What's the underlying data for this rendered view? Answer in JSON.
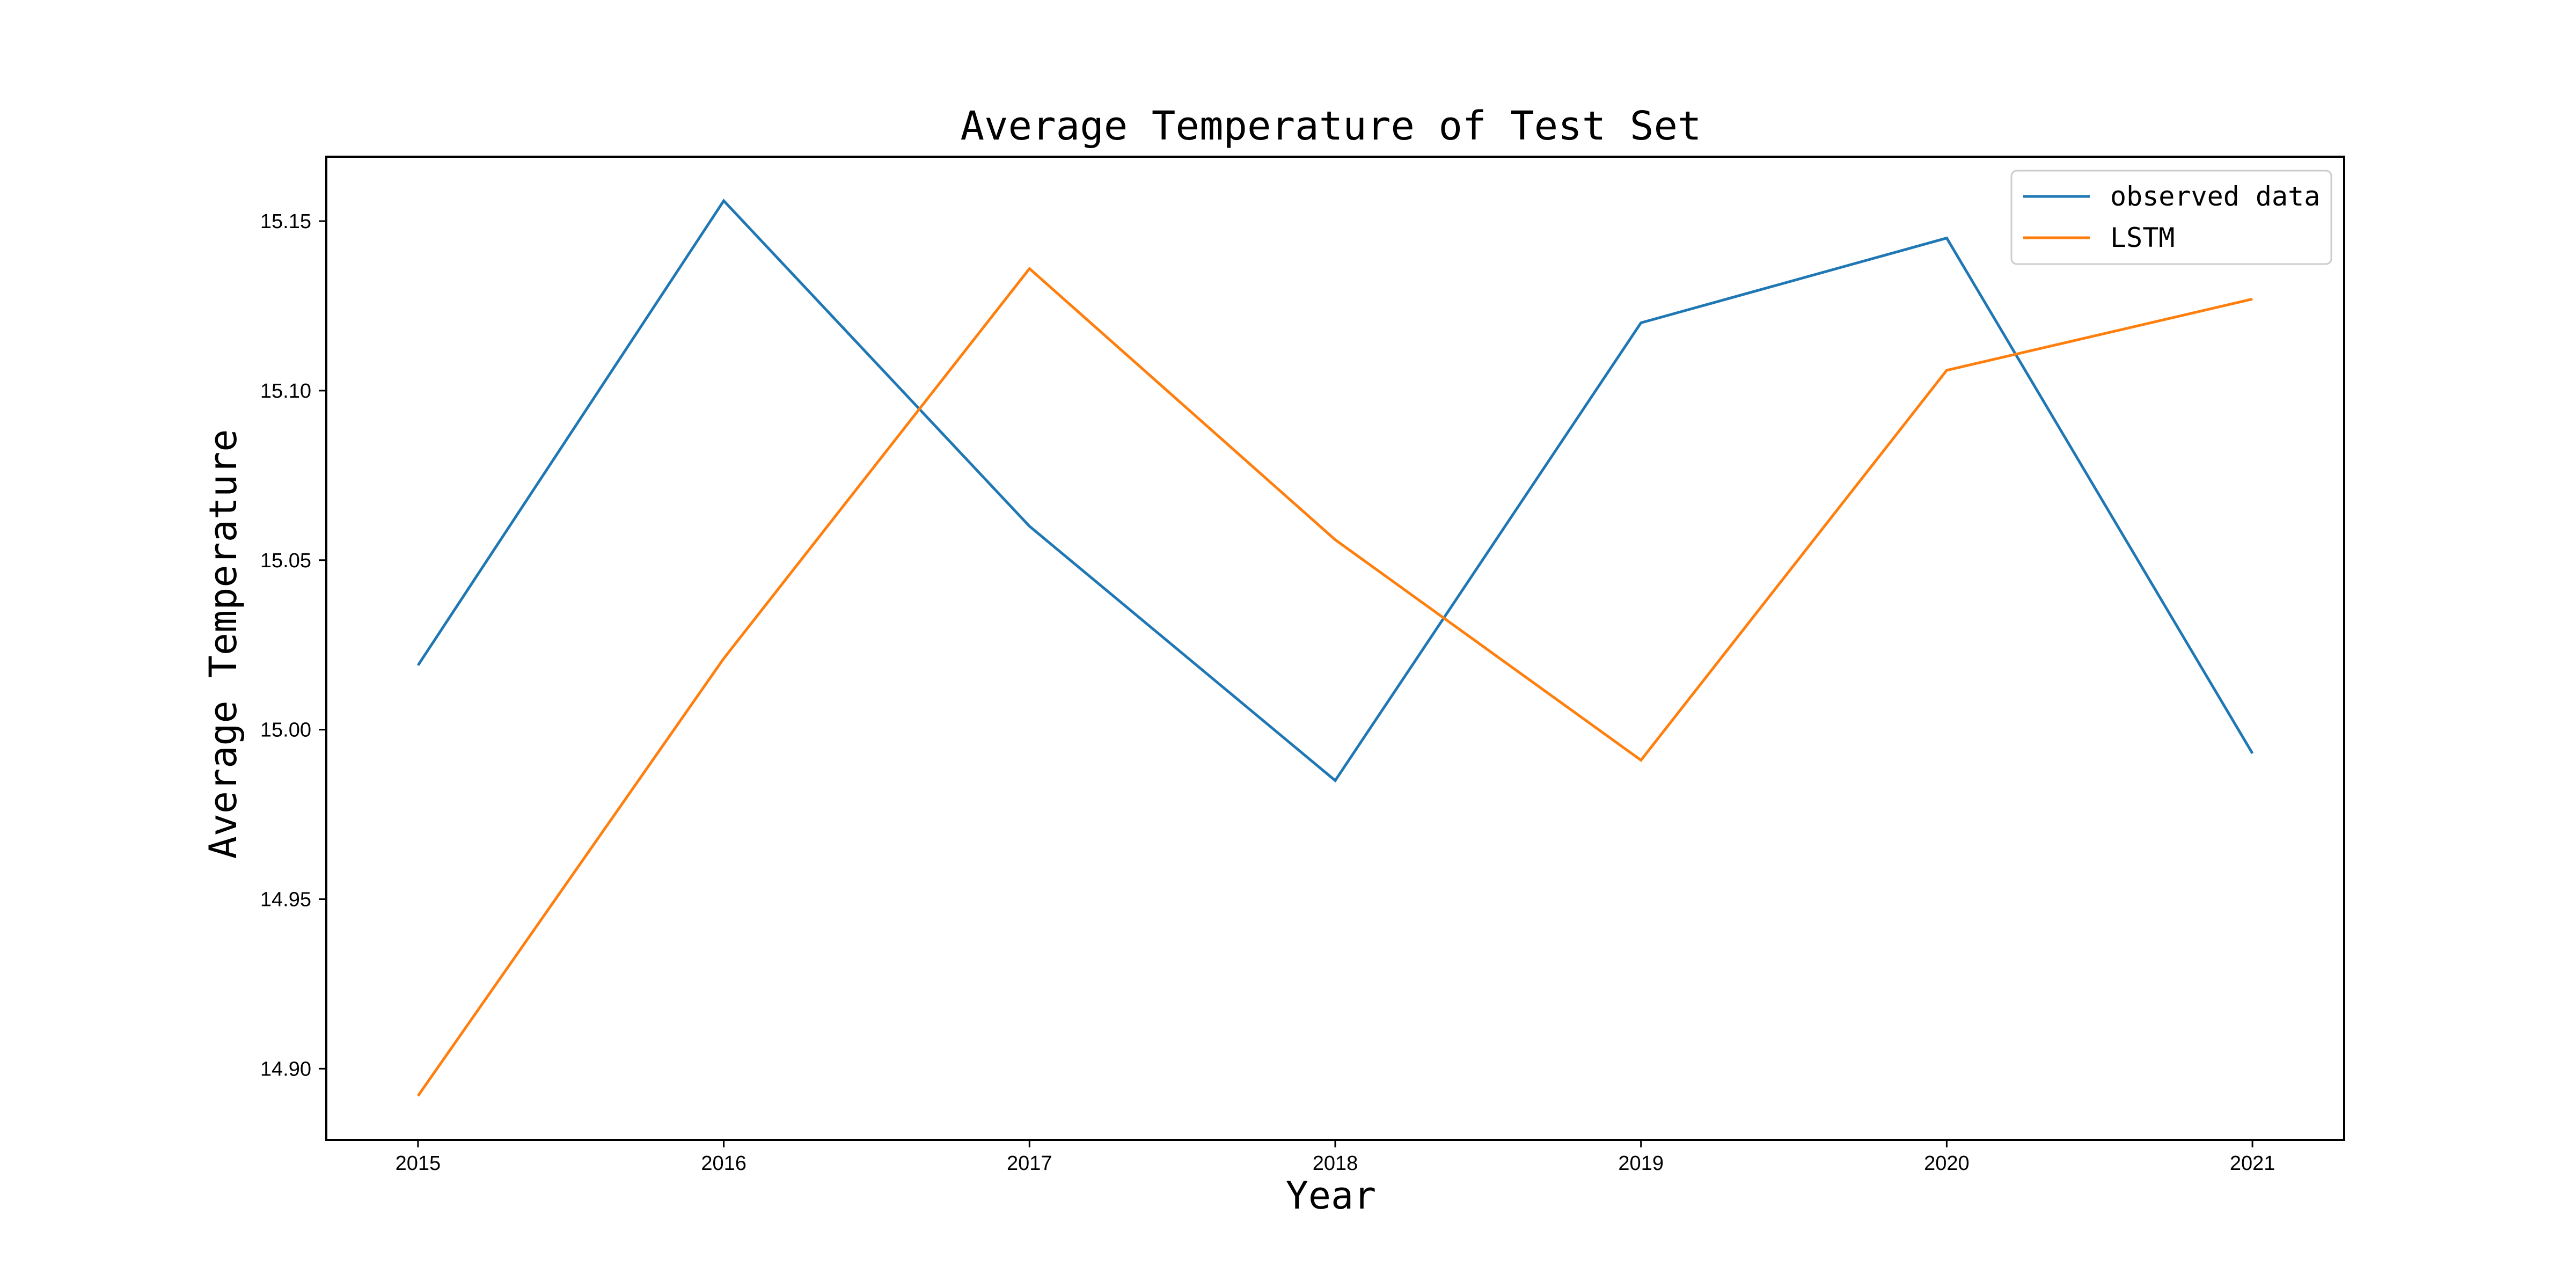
{
  "chart_data": {
    "type": "line",
    "title": "Average Temperature of Test Set",
    "xlabel": "Year",
    "ylabel": "Average Temperature",
    "x": [
      "2015",
      "2016",
      "2017",
      "2018",
      "2019",
      "2020",
      "2021"
    ],
    "yticks": [
      "14.90",
      "14.95",
      "15.00",
      "15.05",
      "15.10",
      "15.15"
    ],
    "ylim": [
      14.879,
      15.169
    ],
    "xlim": [
      2014.7,
      2021.3
    ],
    "grid": false,
    "legend_position": "upper right",
    "series": [
      {
        "name": "observed data",
        "color": "#1f77b4",
        "values": [
          15.019,
          15.156,
          15.06,
          14.985,
          15.12,
          15.145,
          14.993
        ]
      },
      {
        "name": "LSTM",
        "color": "#ff7f0e",
        "values": [
          14.892,
          15.021,
          15.136,
          15.056,
          14.991,
          15.106,
          15.127
        ]
      }
    ]
  }
}
